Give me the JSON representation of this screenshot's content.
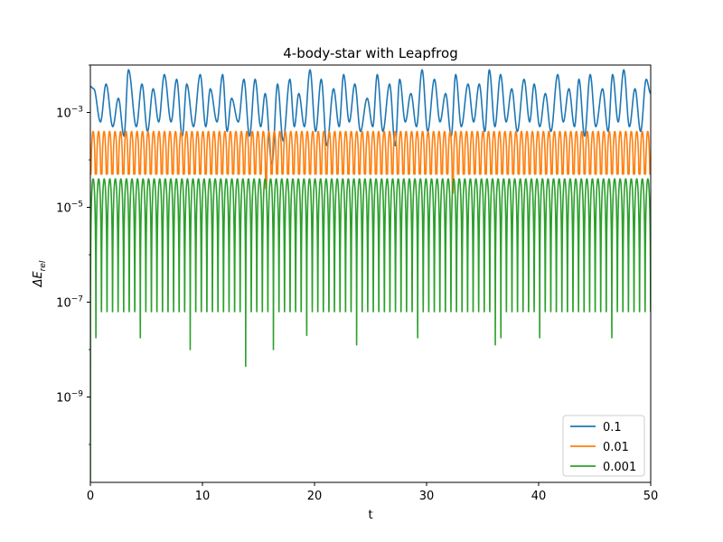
{
  "chart_data": {
    "type": "line",
    "title": "4-body-star with Leapfrog",
    "xlabel": "t",
    "ylabel_base": "ΔE",
    "ylabel_sub": "rel",
    "xlim": [
      0,
      50
    ],
    "ylim_log10": [
      -10.8,
      -2.0
    ],
    "yscale": "log",
    "x_ticks": [
      0,
      10,
      20,
      30,
      40,
      50
    ],
    "x_tick_labels": [
      "0",
      "10",
      "20",
      "30",
      "40",
      "50"
    ],
    "y_ticks_log10": [
      -9,
      -7,
      -5,
      -3
    ],
    "y_tick_labels": [
      "−9",
      "−7",
      "−5",
      "−3"
    ],
    "y_tick_base": "10",
    "grid": false,
    "legend_position": "lower-right",
    "series": [
      {
        "name": "0.1",
        "color": "#1f77b4",
        "peak_times": [
          0.3,
          1.4,
          2.5,
          3.4,
          4.6,
          5.6,
          6.6,
          7.7,
          8.6,
          9.8,
          10.7,
          11.8,
          12.6,
          13.7,
          14.7,
          15.6,
          16.7,
          17.8,
          18.6,
          19.6,
          20.6,
          21.7,
          22.6,
          23.6,
          24.7,
          25.6,
          26.7,
          27.6,
          28.6,
          29.6,
          30.7,
          31.7,
          32.6,
          33.7,
          34.7,
          35.6,
          36.6,
          37.6,
          38.7,
          39.6,
          40.6,
          41.7,
          42.7,
          43.6,
          44.6,
          45.7,
          46.6,
          47.6,
          48.6,
          49.6
        ],
        "peak_log10": [
          -2.5,
          -2.4,
          -2.7,
          -2.1,
          -2.4,
          -2.5,
          -2.2,
          -2.3,
          -2.4,
          -2.2,
          -2.5,
          -2.2,
          -2.7,
          -2.3,
          -2.3,
          -2.6,
          -2.4,
          -2.3,
          -2.6,
          -2.1,
          -2.3,
          -2.5,
          -2.2,
          -2.4,
          -2.7,
          -2.2,
          -2.4,
          -2.3,
          -2.6,
          -2.1,
          -2.3,
          -2.6,
          -2.2,
          -2.4,
          -2.4,
          -2.1,
          -2.2,
          -2.5,
          -2.3,
          -2.4,
          -2.6,
          -2.2,
          -2.5,
          -2.3,
          -2.2,
          -2.5,
          -2.2,
          -2.1,
          -2.5,
          -2.3
        ],
        "min_times": [
          0.9,
          2.0,
          3.0,
          4.1,
          5.1,
          6.1,
          7.2,
          8.2,
          9.2,
          10.3,
          11.3,
          12.2,
          13.2,
          14.2,
          15.2,
          16.2,
          17.2,
          18.2,
          19.1,
          20.1,
          21.1,
          22.2,
          23.1,
          24.1,
          25.2,
          26.1,
          27.2,
          28.1,
          29.1,
          30.1,
          31.2,
          32.2,
          33.1,
          34.2,
          35.2,
          36.1,
          37.1,
          38.1,
          39.2,
          40.1,
          41.1,
          42.2,
          43.2,
          44.1,
          45.1,
          46.2,
          47.1,
          48.1,
          49.1
        ],
        "min_log10": [
          -3.2,
          -3.3,
          -3.5,
          -3.3,
          -3.4,
          -3.2,
          -3.2,
          -3.5,
          -3.3,
          -3.3,
          -3.2,
          -3.4,
          -3.2,
          -3.5,
          -3.3,
          -4.1,
          -3.6,
          -3.3,
          -3.3,
          -3.4,
          -3.7,
          -3.3,
          -3.2,
          -3.4,
          -3.3,
          -3.4,
          -3.7,
          -3.2,
          -3.3,
          -3.4,
          -3.2,
          -3.5,
          -3.3,
          -3.2,
          -3.4,
          -3.3,
          -3.2,
          -3.4,
          -3.2,
          -3.3,
          -3.4,
          -3.2,
          -3.3,
          -3.5,
          -3.3,
          -3.4,
          -3.2,
          -3.3,
          -3.4
        ]
      },
      {
        "name": "0.01",
        "color": "#ff7f0e",
        "period": 0.49,
        "peak_log10": -3.4,
        "min_log10": -4.3,
        "deep_min_times": [
          15.7,
          32.4
        ],
        "deep_min_log10": [
          -4.6,
          -4.7
        ]
      },
      {
        "name": "0.001",
        "color": "#2ca02c",
        "period": 0.495,
        "peak_log10": -4.4,
        "typical_min_log10": -7.2,
        "deep_min_times": [
          0.05,
          0.5,
          4.5,
          9.0,
          14.0,
          16.5,
          19.5,
          23.7,
          29.3,
          36.4,
          39.9,
          40.1,
          46.5
        ],
        "deep_min_log10": [
          -10.8,
          -8.0,
          -8.5,
          -8.0,
          -9.8,
          -8.0,
          -7.7,
          -7.9,
          -8.0,
          -7.9,
          -9.2,
          -8.5,
          -7.8
        ]
      }
    ]
  }
}
